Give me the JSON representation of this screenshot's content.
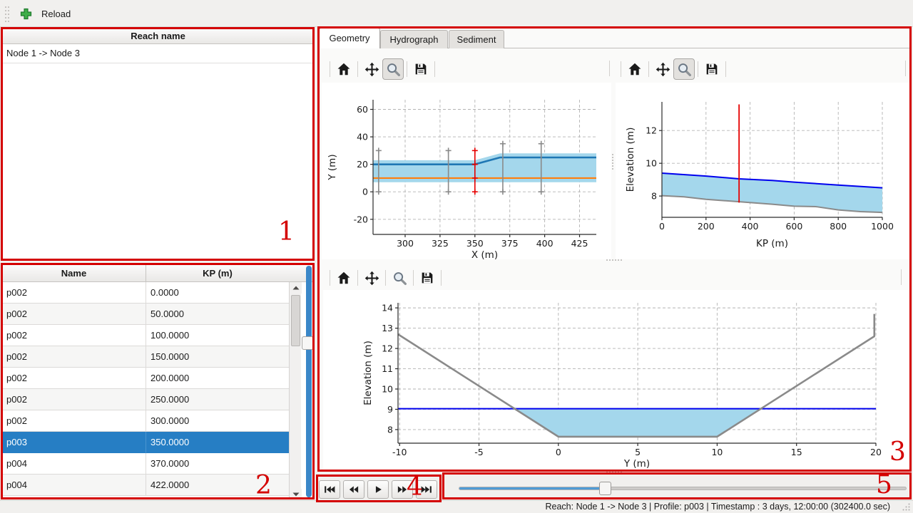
{
  "topbar": {
    "reload_label": "Reload"
  },
  "reach_panel": {
    "header": "Reach name",
    "items": [
      "Node 1 -> Node 3"
    ]
  },
  "profile_table": {
    "columns": [
      "Name",
      "KP (m)"
    ],
    "selected_index": 7,
    "rows": [
      [
        "p002",
        "0.0000"
      ],
      [
        "p002",
        "50.0000"
      ],
      [
        "p002",
        "100.0000"
      ],
      [
        "p002",
        "150.0000"
      ],
      [
        "p002",
        "200.0000"
      ],
      [
        "p002",
        "250.0000"
      ],
      [
        "p002",
        "300.0000"
      ],
      [
        "p003",
        "350.0000"
      ],
      [
        "p004",
        "370.0000"
      ],
      [
        "p004",
        "422.0000"
      ]
    ]
  },
  "tabs": [
    {
      "label": "Geometry",
      "active": true
    },
    {
      "label": "Hydrograph",
      "active": false
    },
    {
      "label": "Sediment",
      "active": false
    }
  ],
  "media_controls": {
    "buttons": [
      "skip-to-start",
      "step-backward",
      "play",
      "step-forward",
      "skip-to-end"
    ],
    "slider_pct": 32.6
  },
  "status_bar": {
    "text": "Reach: Node 1 -> Node 3 | Profile: p003 | Timestamp : 3 days, 12:00:00 (302400.0 sec)"
  },
  "annotations": {
    "labels": [
      "1",
      "2",
      "3",
      "4",
      "5"
    ],
    "color": "#d40000"
  },
  "chart_data": [
    {
      "id": "plan_view",
      "type": "line",
      "title": "",
      "xlabel": "X (m)",
      "ylabel": "Y (m)",
      "xlim": [
        277,
        437
      ],
      "ylim": [
        -31,
        67
      ],
      "xticks": [
        300,
        325,
        350,
        375,
        400,
        425
      ],
      "yticks": [
        -20,
        0,
        20,
        40,
        60
      ],
      "grid": true,
      "series": [
        {
          "name": "channel-extent-band",
          "kind": "polygon",
          "color": "#a4d7ec",
          "points": [
            [
              277,
              23
            ],
            [
              350,
              23
            ],
            [
              368,
              28
            ],
            [
              437,
              28
            ],
            [
              437,
              7
            ],
            [
              277,
              7
            ]
          ]
        },
        {
          "name": "bank-line",
          "kind": "line",
          "color": "#1f77b4",
          "width": 2.6,
          "points": [
            [
              277,
              20
            ],
            [
              350,
              20
            ],
            [
              368,
              25
            ],
            [
              437,
              25
            ]
          ]
        },
        {
          "name": "channel-axis-line",
          "kind": "line",
          "color": "#ff7f0e",
          "width": 2.2,
          "points": [
            [
              277,
              10
            ],
            [
              437,
              10
            ]
          ]
        },
        {
          "name": "profile-trace-281",
          "kind": "errorbar",
          "color": "#8a8a8a",
          "x": 281,
          "y": [
            0,
            30
          ]
        },
        {
          "name": "profile-trace-331",
          "kind": "errorbar",
          "color": "#8a8a8a",
          "x": 331,
          "y": [
            0,
            30
          ]
        },
        {
          "name": "profile-trace-370",
          "kind": "errorbar",
          "color": "#8a8a8a",
          "x": 370,
          "y": [
            0,
            35
          ]
        },
        {
          "name": "profile-trace-397",
          "kind": "errorbar",
          "color": "#8a8a8a",
          "x": 397.5,
          "y": [
            0,
            35
          ]
        },
        {
          "name": "selected-profile-trace-350",
          "kind": "errorbar",
          "color": "#e60000",
          "x": 350,
          "y": [
            0,
            30
          ],
          "marks": [
            0,
            10,
            20,
            30
          ]
        }
      ]
    },
    {
      "id": "long_profile",
      "type": "area",
      "title": "",
      "xlabel": "KP (m)",
      "ylabel": "Elevation (m)",
      "xlim": [
        0,
        1000
      ],
      "ylim": [
        6.7,
        13.75
      ],
      "xticks": [
        0,
        200,
        400,
        600,
        800,
        1000
      ],
      "yticks": [
        8,
        10,
        12
      ],
      "grid": true,
      "series": [
        {
          "name": "water-bed-fill",
          "kind": "polygon",
          "color": "#a4d7ec",
          "points": [
            [
              0,
              9.4
            ],
            [
              200,
              9.22
            ],
            [
              350,
              9.05
            ],
            [
              500,
              8.95
            ],
            [
              600,
              8.85
            ],
            [
              800,
              8.67
            ],
            [
              1000,
              8.5
            ],
            [
              1000,
              7.0
            ],
            [
              900,
              7.05
            ],
            [
              800,
              7.15
            ],
            [
              700,
              7.35
            ],
            [
              600,
              7.38
            ],
            [
              500,
              7.5
            ],
            [
              350,
              7.65
            ],
            [
              200,
              7.8
            ],
            [
              100,
              7.95
            ],
            [
              0,
              8.02
            ]
          ]
        },
        {
          "name": "water-surface-line",
          "kind": "line",
          "color": "#0000ee",
          "width": 2,
          "points": [
            [
              0,
              9.4
            ],
            [
              200,
              9.22
            ],
            [
              350,
              9.05
            ],
            [
              500,
              8.95
            ],
            [
              600,
              8.85
            ],
            [
              800,
              8.67
            ],
            [
              1000,
              8.5
            ]
          ]
        },
        {
          "name": "bed-line",
          "kind": "line",
          "color": "#8a8a8a",
          "width": 2,
          "points": [
            [
              0,
              8.02
            ],
            [
              100,
              7.95
            ],
            [
              200,
              7.8
            ],
            [
              350,
              7.65
            ],
            [
              500,
              7.5
            ],
            [
              600,
              7.38
            ],
            [
              700,
              7.35
            ],
            [
              800,
              7.15
            ],
            [
              900,
              7.05
            ],
            [
              1000,
              7.0
            ]
          ]
        },
        {
          "name": "selected-kp-line",
          "kind": "vline",
          "color": "#e60000",
          "x": 350,
          "y": [
            7.6,
            13.6
          ],
          "width": 1.8
        }
      ]
    },
    {
      "id": "cross_section",
      "type": "area",
      "title": "",
      "xlabel": "Y (m)",
      "ylabel": "Elevation (m)",
      "xlim": [
        -10.1,
        20
      ],
      "ylim": [
        7.33,
        14.25
      ],
      "xticks": [
        -10,
        -5,
        0,
        5,
        10,
        15,
        20
      ],
      "yticks": [
        8,
        9,
        10,
        11,
        12,
        13,
        14
      ],
      "grid": true,
      "series": [
        {
          "name": "water-area-fill",
          "kind": "polygon",
          "color": "#a4d7ec",
          "points": [
            [
              -2.76,
              9.03
            ],
            [
              0,
              7.65
            ],
            [
              10,
              7.65
            ],
            [
              12.72,
              9.03
            ]
          ]
        },
        {
          "name": "water-level-line",
          "kind": "line",
          "color": "#0000ee",
          "width": 2,
          "points": [
            [
              -10.1,
              9.03
            ],
            [
              20,
              9.03
            ]
          ]
        },
        {
          "name": "bed-profile-line",
          "kind": "line",
          "color": "#8a8a8a",
          "width": 2.6,
          "points": [
            [
              -10.1,
              12.7
            ],
            [
              0,
              7.65
            ],
            [
              10,
              7.65
            ],
            [
              19.9,
              12.6
            ],
            [
              19.9,
              13.7
            ]
          ]
        }
      ]
    }
  ]
}
